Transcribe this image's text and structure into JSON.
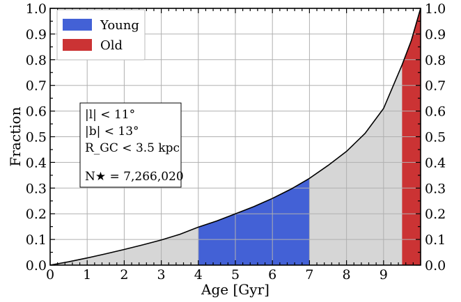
{
  "chart_data": {
    "type": "area",
    "xlabel": "Age [Gyr]",
    "ylabel": "Fraction",
    "xlim": [
      0,
      10
    ],
    "ylim": [
      0,
      1.0
    ],
    "xticks": [
      "0",
      "1",
      "2",
      "3",
      "4",
      "5",
      "6",
      "7",
      "8",
      "9"
    ],
    "yticks": [
      "0.0",
      "0.1",
      "0.2",
      "0.3",
      "0.4",
      "0.5",
      "0.6",
      "0.7",
      "0.8",
      "0.9",
      "1.0"
    ],
    "grid": true,
    "legend_placement": "top-left",
    "curve": {
      "x": [
        0,
        0.5,
        1,
        1.5,
        2,
        2.5,
        3,
        3.5,
        4,
        4.5,
        5,
        5.5,
        6,
        6.5,
        7,
        7.5,
        8,
        8.5,
        9,
        9.5,
        9.75,
        10
      ],
      "y": [
        0.0,
        0.013,
        0.028,
        0.044,
        0.061,
        0.079,
        0.098,
        0.12,
        0.148,
        0.172,
        0.2,
        0.228,
        0.26,
        0.296,
        0.338,
        0.388,
        0.443,
        0.513,
        0.61,
        0.78,
        0.875,
        1.0
      ]
    },
    "regions": [
      {
        "name": "Young",
        "x_range": [
          4,
          7
        ],
        "color": "#4361d6"
      },
      {
        "name": "Old",
        "x_range": [
          9.5,
          10
        ],
        "color": "#cb3334"
      }
    ],
    "fill_color": "#d6d6d6",
    "annotation": [
      "|l| < 11°",
      "|b| < 13°",
      "R_GC < 3.5 kpc",
      "N★ = 7,266,020"
    ]
  }
}
